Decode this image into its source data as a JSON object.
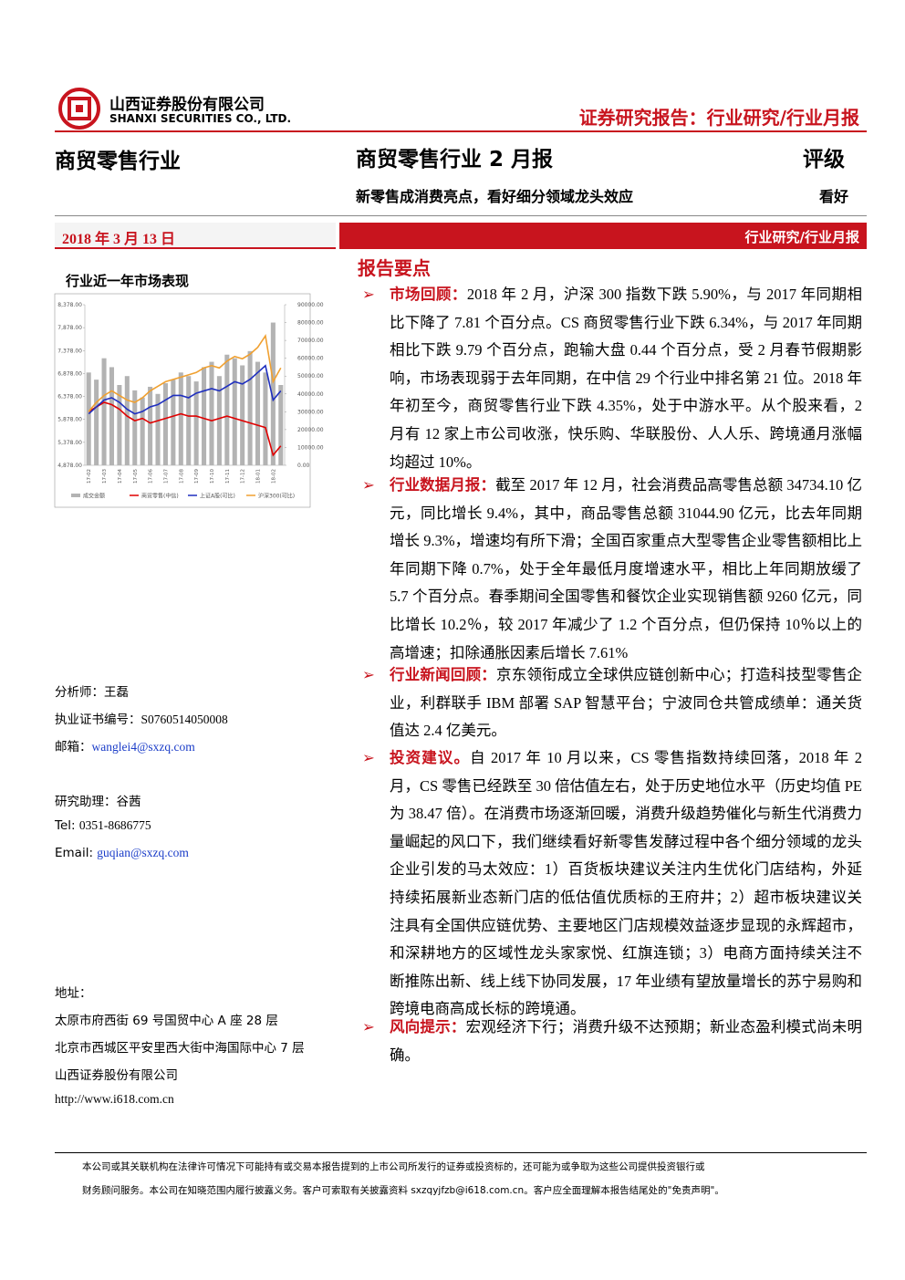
{
  "header": {
    "company_cn": "山西证券股份有限公司",
    "company_en": "SHANXI SECURITIES CO., LTD.",
    "report_type": "证券研究报告：行业研究/行业月报"
  },
  "sidebar": {
    "sector": "商贸零售行业",
    "date": "2018 年 3 月 13 日",
    "chart_title": "行业近一年市场表现",
    "contacts": [
      {
        "label": "分析师：",
        "value": "王磊"
      },
      {
        "label": "执业证书编号：",
        "value": "S0760514050008"
      },
      {
        "label": "邮箱：",
        "value": "wanglei4@sxzq.com"
      }
    ],
    "assistant": [
      {
        "label": "研究助理：",
        "value": "谷茜"
      },
      {
        "label": "Tel: ",
        "value": "0351-8686775"
      },
      {
        "label": "Email: ",
        "value": "guqian@sxzq.com"
      }
    ],
    "address_label": "地址：",
    "address": [
      "太原市府西街 69 号国贸中心 A 座 28 层",
      "北京市西城区平安里西大街中海国际中心 7 层",
      "山西证券股份有限公司"
    ],
    "website": "http://www.i618.com.cn"
  },
  "main": {
    "title": "商贸零售行业 2 月报",
    "subtitle": "新零售成消费亮点，看好细分领域龙头效应",
    "rating_label": "评级",
    "rating": "看好",
    "banner": "行业研究/行业月报",
    "section": "报告要点",
    "bullets": [
      {
        "heading": "市场回顾：",
        "text": "2018 年 2 月，沪深 300 指数下跌 5.90%，与 2017 年同期相比下降了 7.81 个百分点。CS 商贸零售行业下跌 6.34%，与 2017 年同期相比下跌 9.79 个百分点，跑输大盘 0.44 个百分点，受 2 月春节假期影响，市场表现弱于去年同期，在中信 29 个行业中排名第 21 位。2018 年年初至今，商贸零售行业下跌 4.35%，处于中游水平。从个股来看，2 月有 12 家上市公司收涨，快乐购、华联股份、人人乐、跨境通月涨幅均超过 10%。"
      },
      {
        "heading": "行业数据月报：",
        "text": "截至 2017 年 12 月，社会消费品高零售总额 34734.10 亿元，同比增长 9.4%，其中，商品零售总额 31044.90 亿元，比去年同期增长 9.3%，增速均有所下滑；全国百家重点大型零售企业零售额相比上年同期下降 0.7%，处于全年最低月度增速水平，相比上年同期放缓了 5.7 个百分点。春季期间全国零售和餐饮企业实现销售额 9260 亿元，同比增长 10.2％，较 2017 年减少了 1.2 个百分点，但仍保持 10％以上的高增速；扣除通胀因素后增长 7.61%"
      },
      {
        "heading": "行业新闻回顾：",
        "text": "京东领衔成立全球供应链创新中心；打造科技型零售企业，利群联手 IBM 部署 SAP 智慧平台；宁波同仓共管成绩单：通关货值达 2.4 亿美元。"
      },
      {
        "heading": "投资建议。",
        "text": "自 2017 年 10 月以来，CS 零售指数持续回落，2018 年 2 月，CS 零售已经跌至 30 倍估值左右，处于历史地位水平（历史均值 PE 为 38.47 倍）。在消费市场逐渐回暖，消费升级趋势催化与新生代消费力量崛起的风口下，我们继续看好新零售发酵过程中各个细分领域的龙头企业引发的马太效应：1）百货板块建议关注内生优化门店结构，外延持续拓展新业态新门店的低估值优质标的王府井；2）超市板块建议关注具有全国供应链优势、主要地区门店规模效益逐步显现的永辉超市，和深耕地方的区域性龙头家家悦、红旗连锁；3）电商方面持续关注不断推陈出新、线上线下协同发展，17 年业绩有望放量增长的苏宁易购和跨境电商高成长标的跨境通。"
      },
      {
        "heading": "风向提示：",
        "text": "宏观经济下行；消费升级不达预期；新业态盈利模式尚未明确。"
      }
    ]
  },
  "footer": [
    "本公司或其关联机构在法律许可情况下可能持有或交易本报告提到的上市公司所发行的证券或投资标的，还可能为或争取为这些公司提供投资银行或",
    "财务顾问服务。本公司在知晓范围内履行披露义务。客户可索取有关披露资料 sxzqyjfzb@i618.com.cn。客户应全面理解本报告结尾处的\"免责声明\"。"
  ],
  "chart_data": {
    "type": "bar_line",
    "categories": [
      "17-02",
      null,
      "17-03",
      null,
      "17-04",
      null,
      "17-05",
      null,
      "17-06",
      null,
      "17-07",
      null,
      "17-08",
      null,
      "17-09",
      null,
      "17-10",
      null,
      "17-11",
      null,
      "17-12",
      null,
      "18-01",
      null,
      "18-02",
      null
    ],
    "series": [
      {
        "name": "成交金额",
        "type": "bar",
        "axis": "y2",
        "color": "#b3b3b3",
        "values": [
          52000,
          48000,
          60000,
          55000,
          45000,
          50000,
          42000,
          38000,
          44000,
          40000,
          46000,
          48000,
          52000,
          50000,
          47000,
          55000,
          58000,
          50000,
          62000,
          60000,
          56000,
          64000,
          58000,
          52000,
          80000,
          45000
        ]
      },
      {
        "name": "商贸零售(中信)",
        "type": "line",
        "color": "#e00000",
        "values": [
          6050,
          6150,
          6250,
          6200,
          6100,
          5950,
          5850,
          5900,
          5800,
          5850,
          5900,
          5950,
          6000,
          5950,
          5950,
          5900,
          5850,
          5900,
          5950,
          5900,
          5850,
          5800,
          5750,
          5700,
          5100,
          5300
        ]
      },
      {
        "name": "上证A股(可比)",
        "type": "line",
        "color": "#1f2fbf",
        "values": [
          6000,
          6150,
          6300,
          6350,
          6250,
          6100,
          6000,
          6050,
          6150,
          6200,
          6300,
          6400,
          6400,
          6350,
          6450,
          6500,
          6550,
          6500,
          6600,
          6700,
          6650,
          6750,
          6900,
          7050,
          6300,
          6500
        ]
      },
      {
        "name": "沪深300(可比)",
        "type": "line",
        "color": "#f0a030",
        "values": [
          6050,
          6250,
          6400,
          6500,
          6400,
          6300,
          6250,
          6350,
          6500,
          6600,
          6700,
          6750,
          6800,
          6850,
          6900,
          7000,
          7050,
          7000,
          7150,
          7250,
          7200,
          7300,
          7450,
          7700,
          6700,
          7000
        ]
      }
    ],
    "ylim": [
      4878,
      8378
    ],
    "yticks": [
      {
        "value": 4878,
        "label": "4,878.00"
      },
      {
        "value": 5378,
        "label": "5,378.00"
      },
      {
        "value": 5878,
        "label": "5,878.00"
      },
      {
        "value": 6378,
        "label": "6,378.00"
      },
      {
        "value": 6878,
        "label": "6,878.00"
      },
      {
        "value": 7378,
        "label": "7,378.00"
      },
      {
        "value": 7878,
        "label": "7,878.00"
      },
      {
        "value": 8378,
        "label": "8,378.00"
      }
    ],
    "y2lim": [
      0,
      90000
    ],
    "y2ticks": [
      {
        "value": 0,
        "label": "0.00"
      },
      {
        "value": 10000,
        "label": "10000.00"
      },
      {
        "value": 20000,
        "label": "20000.00"
      },
      {
        "value": 30000,
        "label": "30000.00"
      },
      {
        "value": 40000,
        "label": "40000.00"
      },
      {
        "value": 50000,
        "label": "50000.00"
      },
      {
        "value": 60000,
        "label": "60000.00"
      },
      {
        "value": 70000,
        "label": "70000.00"
      },
      {
        "value": 80000,
        "label": "80000.00"
      },
      {
        "value": 90000,
        "label": "90000.00"
      }
    ]
  }
}
